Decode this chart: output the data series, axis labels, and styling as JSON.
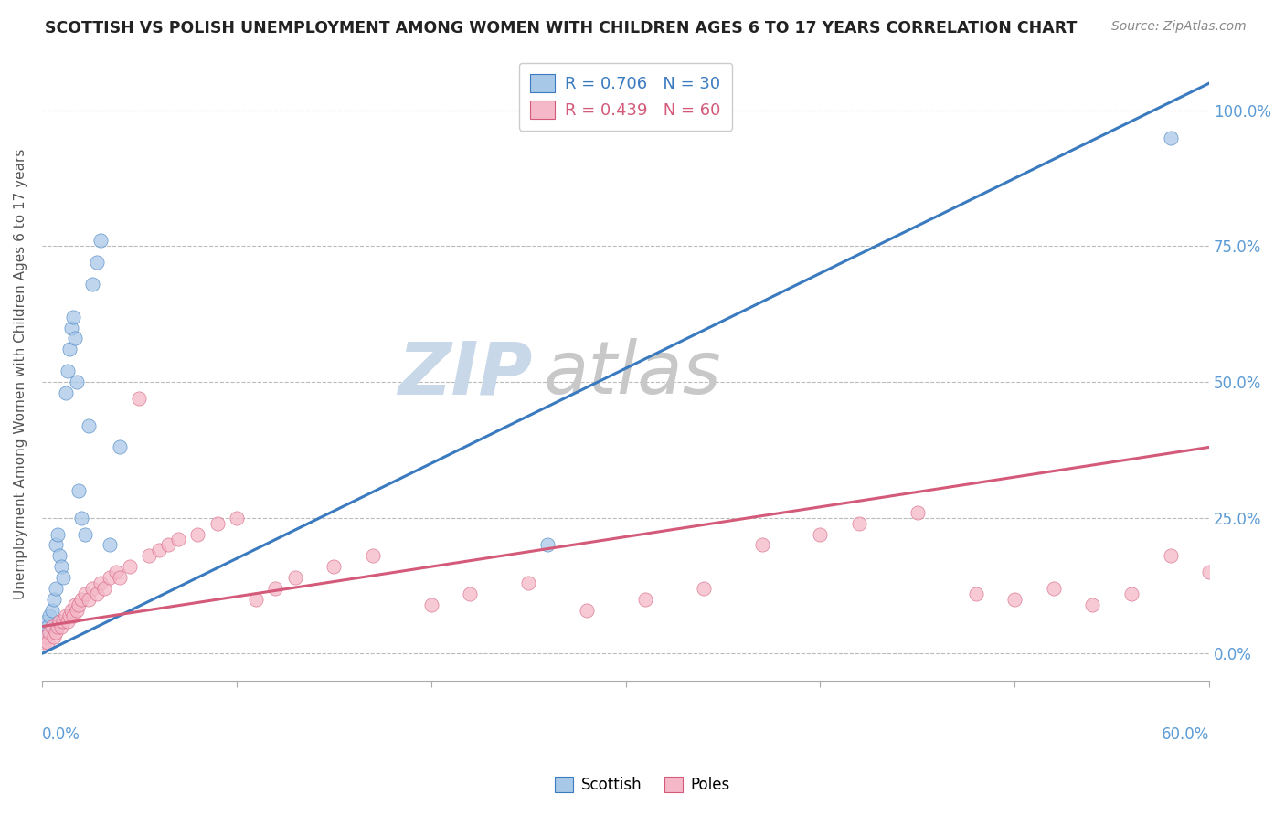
{
  "title": "SCOTTISH VS POLISH UNEMPLOYMENT AMONG WOMEN WITH CHILDREN AGES 6 TO 17 YEARS CORRELATION CHART",
  "source": "Source: ZipAtlas.com",
  "ylabel": "Unemployment Among Women with Children Ages 6 to 17 years",
  "yticks": [
    0.0,
    0.25,
    0.5,
    0.75,
    1.0
  ],
  "ytick_labels": [
    "0.0%",
    "25.0%",
    "50.0%",
    "75.0%",
    "100.0%"
  ],
  "xlim": [
    0.0,
    0.6
  ],
  "ylim": [
    -0.05,
    1.08
  ],
  "legend_scottish": "R = 0.706   N = 30",
  "legend_poles": "R = 0.439   N = 60",
  "scottish_color": "#a8c8e8",
  "poles_color": "#f4b8c8",
  "scottish_line_color": "#3a7abf",
  "poles_line_color": "#d45a7a",
  "watermark_zip": "ZIP",
  "watermark_atlas": "atlas",
  "watermark_color_zip": "#c8d8e8",
  "watermark_color_atlas": "#c8c8c8",
  "background_color": "#ffffff",
  "scottish_x": [
    0.001,
    0.002,
    0.003,
    0.004,
    0.005,
    0.006,
    0.007,
    0.007,
    0.008,
    0.009,
    0.01,
    0.011,
    0.012,
    0.013,
    0.014,
    0.015,
    0.016,
    0.017,
    0.018,
    0.019,
    0.02,
    0.022,
    0.024,
    0.026,
    0.028,
    0.03,
    0.035,
    0.04,
    0.26,
    0.58
  ],
  "scottish_y": [
    0.04,
    0.06,
    0.05,
    0.07,
    0.08,
    0.1,
    0.12,
    0.2,
    0.22,
    0.18,
    0.16,
    0.14,
    0.48,
    0.52,
    0.56,
    0.6,
    0.62,
    0.58,
    0.5,
    0.3,
    0.25,
    0.22,
    0.42,
    0.68,
    0.72,
    0.76,
    0.2,
    0.38,
    0.2,
    0.95
  ],
  "poles_x": [
    0.001,
    0.002,
    0.003,
    0.004,
    0.005,
    0.006,
    0.007,
    0.008,
    0.009,
    0.01,
    0.011,
    0.012,
    0.013,
    0.014,
    0.015,
    0.016,
    0.017,
    0.018,
    0.019,
    0.02,
    0.022,
    0.024,
    0.026,
    0.028,
    0.03,
    0.032,
    0.035,
    0.038,
    0.04,
    0.045,
    0.05,
    0.055,
    0.06,
    0.065,
    0.07,
    0.08,
    0.09,
    0.1,
    0.11,
    0.12,
    0.13,
    0.15,
    0.17,
    0.2,
    0.22,
    0.25,
    0.28,
    0.31,
    0.34,
    0.37,
    0.4,
    0.42,
    0.45,
    0.48,
    0.5,
    0.52,
    0.54,
    0.56,
    0.58,
    0.6
  ],
  "poles_y": [
    0.02,
    0.03,
    0.02,
    0.04,
    0.05,
    0.03,
    0.04,
    0.05,
    0.06,
    0.05,
    0.06,
    0.07,
    0.06,
    0.07,
    0.08,
    0.07,
    0.09,
    0.08,
    0.09,
    0.1,
    0.11,
    0.1,
    0.12,
    0.11,
    0.13,
    0.12,
    0.14,
    0.15,
    0.14,
    0.16,
    0.47,
    0.18,
    0.19,
    0.2,
    0.21,
    0.22,
    0.24,
    0.25,
    0.1,
    0.12,
    0.14,
    0.16,
    0.18,
    0.09,
    0.11,
    0.13,
    0.08,
    0.1,
    0.12,
    0.2,
    0.22,
    0.24,
    0.26,
    0.11,
    0.1,
    0.12,
    0.09,
    0.11,
    0.18,
    0.15
  ],
  "scottish_line_x": [
    0.0,
    0.6
  ],
  "scottish_line_y": [
    0.0,
    1.05
  ],
  "poles_line_x": [
    0.0,
    0.6
  ],
  "poles_line_y": [
    0.05,
    0.38
  ]
}
